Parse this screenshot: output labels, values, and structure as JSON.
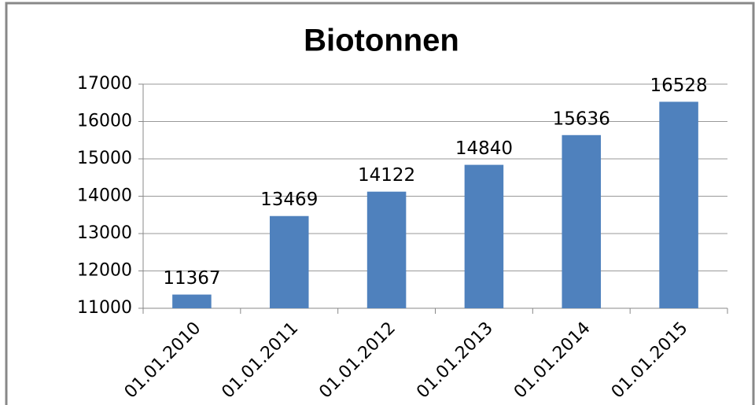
{
  "chart_data": {
    "type": "bar",
    "title": "Biotonnen",
    "categories": [
      "01.01.2010",
      "01.01.2011",
      "01.01.2012",
      "01.01.2013",
      "01.01.2014",
      "01.01.2015"
    ],
    "values": [
      11367,
      13469,
      14122,
      14840,
      15636,
      16528
    ],
    "color": "#4f81bd",
    "ylim": [
      11000,
      17000
    ],
    "yticks": [
      11000,
      12000,
      13000,
      14000,
      15000,
      16000,
      17000
    ],
    "grid": true
  }
}
